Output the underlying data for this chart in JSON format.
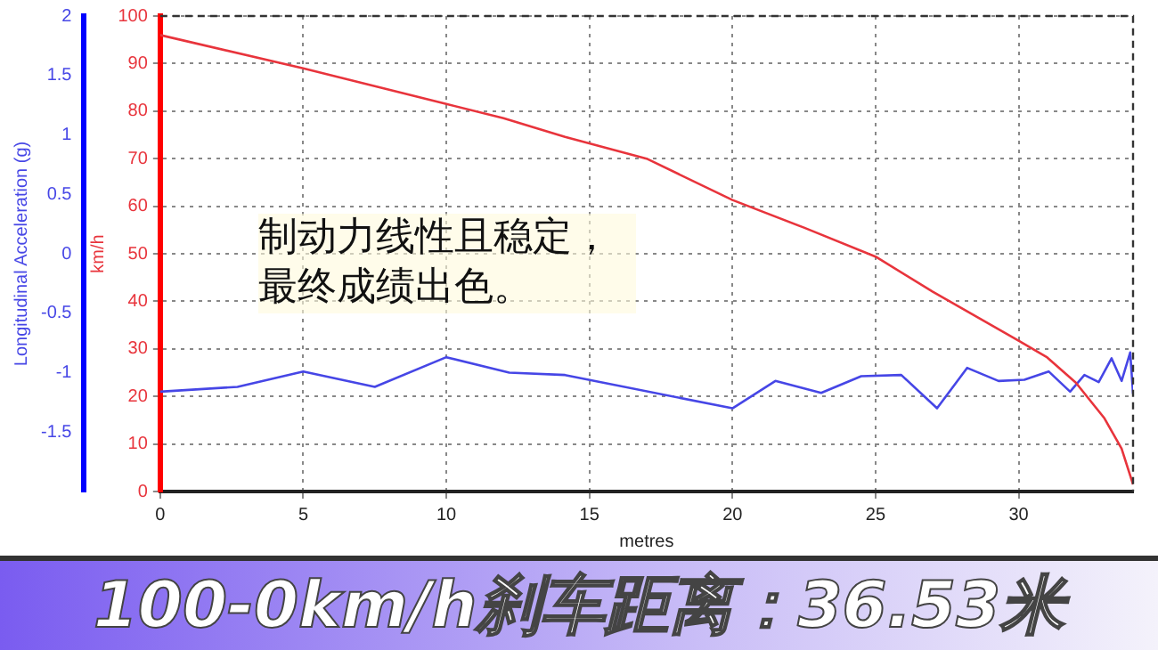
{
  "chart_data": {
    "type": "line",
    "title": "100-0km/h刹车距离：36.53米",
    "xlabel": "metres",
    "ylabel": "km/h",
    "y2label": "Longitudinal Acceleration (g)",
    "annotations": [
      "制动力线性且稳定，最终成绩出色。"
    ],
    "xlim": [
      0,
      34
    ],
    "xticks": [
      0,
      5,
      10,
      15,
      20,
      25,
      30
    ],
    "ylim": [
      0,
      100
    ],
    "yticks": [
      0,
      10,
      20,
      30,
      40,
      50,
      60,
      70,
      80,
      90,
      100
    ],
    "y2lim": [
      -2,
      2
    ],
    "y2ticks": [
      -1.5,
      -1,
      -0.5,
      0,
      0.5,
      1,
      1.5,
      2
    ],
    "grid": true,
    "legend": false,
    "marker": "none",
    "line_style": "solid",
    "series": [
      {
        "color": "#e8343c",
        "axis": "y",
        "x": [
          0,
          5,
          10,
          12,
          14.15,
          17,
          20,
          22.5,
          25,
          27,
          30,
          31,
          32,
          33,
          33.6,
          34
        ],
        "values": [
          96,
          89,
          81.5,
          78.5,
          74.6,
          70,
          61.3,
          55.5,
          49.4,
          42,
          31.7,
          28.2,
          22.9,
          15.4,
          9,
          1.5
        ]
      },
      {
        "color": "#4646e6",
        "axis": "y2",
        "x": [
          0,
          2.7,
          5,
          7.5,
          10,
          12.2,
          14.15,
          20,
          21.5,
          23.1,
          24.5,
          25.9,
          27.15,
          28.2,
          29.3,
          30.2,
          31.05,
          31.8,
          32.3,
          32.8,
          33.25,
          33.6,
          33.9,
          34
        ],
        "values": [
          -1.16,
          -1.12,
          -0.99,
          -1.12,
          -0.87,
          -1.0,
          -1.02,
          -1.3,
          -1.07,
          -1.17,
          -1.03,
          -1.02,
          -1.3,
          -0.96,
          -1.07,
          -1.06,
          -0.99,
          -1.16,
          -1.02,
          -1.08,
          -0.88,
          -1.07,
          -0.83,
          -1.18
        ]
      }
    ]
  }
}
